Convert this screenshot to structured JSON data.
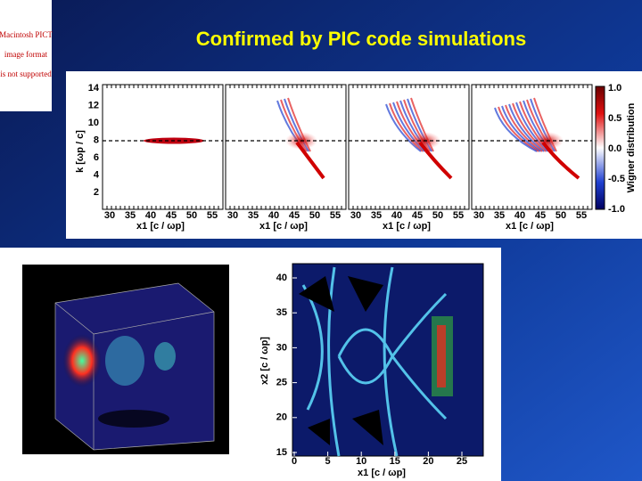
{
  "slide": {
    "title": "Confirmed by PIC code simulations"
  },
  "placeholder": {
    "lines": [
      "Macintosh PICT",
      "image format",
      "is not supported"
    ]
  },
  "top_figure": {
    "yticks": [
      "14",
      "12",
      "10",
      "8",
      "6",
      "4",
      "2"
    ],
    "ylabel": "k [ωp / c]",
    "xticks": [
      "30",
      "35",
      "40",
      "45",
      "50",
      "55"
    ],
    "xlabel": "x1 [c / ωp]",
    "colorbar_ticks": [
      "1.0",
      "0.5",
      "0.0",
      "-0.5",
      "-1.0"
    ],
    "colorbar_label": "Wigner distribution"
  },
  "bottom_figure": {
    "yticks": [
      "40",
      "35",
      "30",
      "25",
      "20",
      "15"
    ],
    "ylabel": "x2 [c / ωp]",
    "xticks": [
      "0",
      "5",
      "10",
      "15",
      "20",
      "25"
    ],
    "xlabel": "x1 [c / ωp]"
  }
}
